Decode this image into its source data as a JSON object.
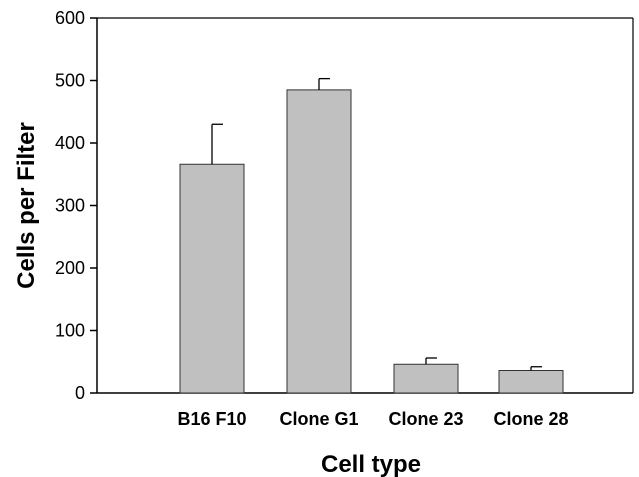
{
  "chart_data": {
    "type": "bar",
    "categories": [
      "B16 F10",
      "Clone G1",
      "Clone 23",
      "Clone 28"
    ],
    "values": [
      366,
      485,
      46,
      36
    ],
    "errors": [
      64,
      18,
      10,
      6
    ],
    "xlabel": "Cell type",
    "ylabel": "Cells per Filter",
    "ylim": [
      0,
      600
    ],
    "yticks": [
      0,
      100,
      200,
      300,
      400,
      500,
      600
    ],
    "grid": false,
    "bar_color": "#c0c0c0",
    "bar_edge_color": "#333333"
  }
}
